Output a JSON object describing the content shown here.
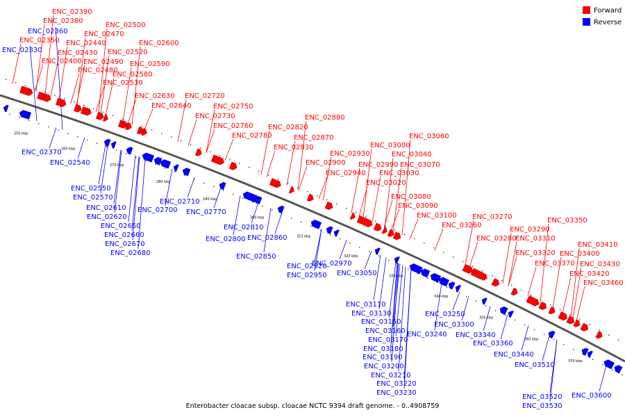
{
  "caption": "Enterobacter cloacae subsp. cloacae NCTC 9394 draft genome. - 0..4908759",
  "legend": [
    {
      "label": "Forward",
      "color": "#ff0000"
    },
    {
      "label": "Reverse",
      "color": "#0000ff"
    }
  ],
  "colors": {
    "forward": "#ff0000",
    "reverse": "#0000ff",
    "backbone": "#555555"
  },
  "scale_labels": [
    "250 kbp",
    "260 kbp",
    "270 kbp",
    "280 kbp",
    "290 kbp",
    "300 kbp",
    "310 kbp",
    "320 kbp",
    "330 kbp",
    "340 kbp",
    "350 kbp",
    "360 kbp",
    "370 kbp"
  ],
  "forward_genes": [
    "ENC_02390",
    "ENC_02380",
    "ENC_02350",
    "ENC_02470",
    "ENC_02440",
    "ENC_02430",
    "ENC_02400",
    "ENC_02500",
    "ENC_02480",
    "ENC_02490",
    "ENC_02520",
    "ENC_02600",
    "ENC_02590",
    "ENC_02580",
    "ENC_02530",
    "ENC_02630",
    "ENC_02640",
    "ENC_02720",
    "ENC_02730",
    "ENC_02750",
    "ENC_02760",
    "ENC_02780",
    "ENC_02820",
    "ENC_02830",
    "ENC_02880",
    "ENC_02870",
    "ENC_02930",
    "ENC_02900",
    "ENC_02940",
    "ENC_02990",
    "ENC_03000",
    "ENC_03060",
    "ENC_03040",
    "ENC_03070",
    "ENC_03030",
    "ENC_03020",
    "ENC_03080",
    "ENC_03090",
    "ENC_03100",
    "ENC_03270",
    "ENC_03260",
    "ENC_03290",
    "ENC_03280",
    "ENC_03310",
    "ENC_03350",
    "ENC_03320",
    "ENC_03370",
    "ENC_03410",
    "ENC_03400",
    "ENC_03430",
    "ENC_03420",
    "ENC_03460"
  ],
  "reverse_genes": [
    "ENC_02360",
    "ENC_02330",
    "ENC_02370",
    "ENC_02540",
    "ENC_02550",
    "ENC_02570",
    "ENC_02610",
    "ENC_02620",
    "ENC_02650",
    "ENC_02660",
    "ENC_02670",
    "ENC_02680",
    "ENC_02700",
    "ENC_02710",
    "ENC_02770",
    "ENC_02810",
    "ENC_02800",
    "ENC_02860",
    "ENC_02850",
    "ENC_02920",
    "ENC_02950",
    "ENC_02970",
    "ENC_03050",
    "ENC_03110",
    "ENC_03130",
    "ENC_03150",
    "ENC_03160",
    "ENC_03170",
    "ENC_03180",
    "ENC_03190",
    "ENC_03200",
    "ENC_03210",
    "ENC_03220",
    "ENC_03230",
    "ENC_03250",
    "ENC_03240",
    "ENC_03300",
    "ENC_03340",
    "ENC_03360",
    "ENC_03440",
    "ENC_03510",
    "ENC_03520",
    "ENC_03530",
    "ENC_03600"
  ]
}
